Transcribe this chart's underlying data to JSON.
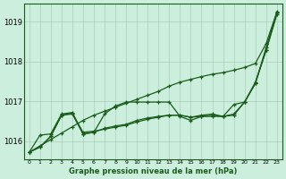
{
  "title": "Graphe pression niveau de la mer (hPa)",
  "background_color": "#cceedd",
  "grid_color": "#aaccbb",
  "line_color": "#1a5c1a",
  "ylim": [
    1015.55,
    1019.45
  ],
  "yticks": [
    1016,
    1017,
    1018,
    1019
  ],
  "xlim": [
    -0.5,
    23.5
  ],
  "x_labels": [
    "0",
    "1",
    "2",
    "3",
    "4",
    "5",
    "6",
    "7",
    "8",
    "9",
    "10",
    "11",
    "12",
    "13",
    "14",
    "15",
    "16",
    "17",
    "18",
    "19",
    "20",
    "21",
    "22",
    "23"
  ],
  "series_diagonal": [
    1015.72,
    1015.88,
    1016.04,
    1016.2,
    1016.36,
    1016.52,
    1016.65,
    1016.75,
    1016.85,
    1016.95,
    1017.05,
    1017.15,
    1017.25,
    1017.38,
    1017.48,
    1017.55,
    1017.62,
    1017.68,
    1017.72,
    1017.78,
    1017.85,
    1017.95,
    1018.45,
    1019.25
  ],
  "series_a": [
    1015.72,
    1016.15,
    1016.18,
    1016.68,
    1016.72,
    1016.18,
    1016.22,
    1016.68,
    1016.88,
    1016.98,
    1016.98,
    1016.98,
    1016.98,
    1016.98,
    1016.62,
    1016.52,
    1016.62,
    1016.62,
    1016.62,
    1016.92,
    1016.98,
    1017.45,
    1018.35,
    1019.22
  ],
  "series_b": [
    1015.72,
    1015.85,
    1016.12,
    1016.65,
    1016.68,
    1016.18,
    1016.22,
    1016.32,
    1016.38,
    1016.42,
    1016.52,
    1016.58,
    1016.62,
    1016.65,
    1016.65,
    1016.6,
    1016.62,
    1016.65,
    1016.62,
    1016.65,
    1016.98,
    1017.48,
    1018.28,
    1019.22
  ],
  "series_c": [
    1015.72,
    1015.85,
    1016.12,
    1016.65,
    1016.7,
    1016.22,
    1016.25,
    1016.3,
    1016.35,
    1016.4,
    1016.48,
    1016.55,
    1016.6,
    1016.65,
    1016.65,
    1016.6,
    1016.65,
    1016.68,
    1016.62,
    1016.68,
    1016.98,
    1017.45,
    1018.28,
    1019.18
  ]
}
